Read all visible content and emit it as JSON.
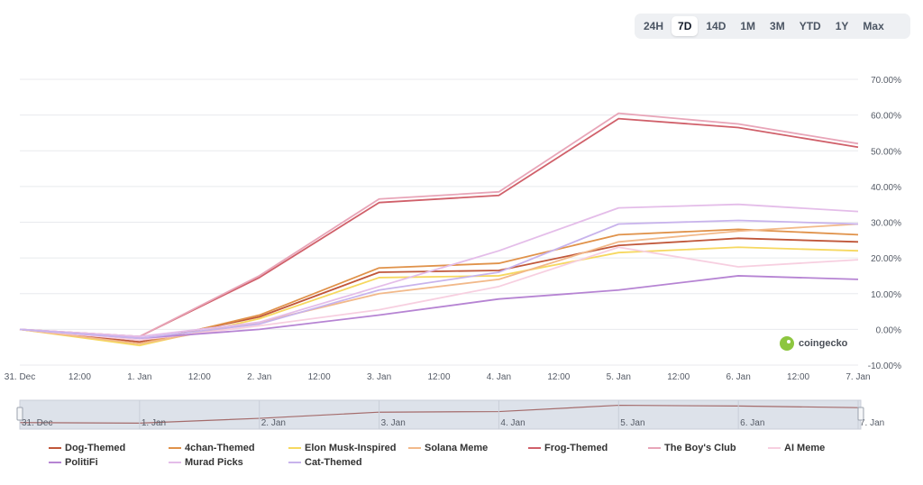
{
  "range_selector": {
    "options": [
      "24H",
      "7D",
      "14D",
      "1M",
      "3M",
      "YTD",
      "1Y",
      "Max"
    ],
    "active": "7D"
  },
  "brand": {
    "name": "coingecko"
  },
  "chart_data": {
    "type": "line",
    "x": [
      "31. Dec",
      "1. Jan",
      "2. Jan",
      "3. Jan",
      "4. Jan",
      "5. Jan",
      "6. Jan",
      "7. Jan"
    ],
    "x_tick_labels": [
      "31. Dec",
      "12:00",
      "1. Jan",
      "12:00",
      "2. Jan",
      "12:00",
      "3. Jan",
      "12:00",
      "4. Jan",
      "12:00",
      "5. Jan",
      "12:00",
      "6. Jan",
      "12:00",
      "7. Jan"
    ],
    "y_tick_labels": [
      "70.00%",
      "60.00%",
      "50.00%",
      "40.00%",
      "30.00%",
      "20.00%",
      "10.00%",
      "0.00%",
      "-10.00%"
    ],
    "ylim": [
      -10,
      70
    ],
    "y_unit": "%",
    "grid": true,
    "legend_position": "bottom",
    "series": [
      {
        "name": "Dog-Themed",
        "color": "#c0573a",
        "values": [
          0,
          -3.5,
          3.5,
          16,
          16.5,
          23.5,
          25.5,
          24.5
        ]
      },
      {
        "name": "4chan-Themed",
        "color": "#e0924a",
        "values": [
          0,
          -4,
          4,
          17.2,
          18.5,
          26.5,
          28,
          26.5
        ]
      },
      {
        "name": "Elon Musk-Inspired",
        "color": "#f6d860",
        "values": [
          0,
          -4.5,
          3,
          14.5,
          15,
          21.5,
          23,
          22
        ]
      },
      {
        "name": "Solana Meme",
        "color": "#f2b98a",
        "values": [
          0,
          -4,
          2,
          10,
          14,
          24.5,
          27.5,
          29.5
        ]
      },
      {
        "name": "Frog-Themed",
        "color": "#d0606a",
        "values": [
          0,
          -2,
          14.5,
          35.5,
          37.5,
          59,
          56.5,
          51
        ]
      },
      {
        "name": "The Boy's Club",
        "color": "#e8a5b8",
        "values": [
          0,
          -2,
          15,
          36.5,
          38.5,
          60.5,
          57.5,
          52
        ]
      },
      {
        "name": "AI Meme",
        "color": "#f7cfe0",
        "values": [
          0,
          -3,
          1,
          5.5,
          12,
          23,
          17.5,
          19.5
        ]
      },
      {
        "name": "PolitiFi",
        "color": "#b684d3",
        "values": [
          0,
          -2.5,
          0,
          4,
          8.5,
          11,
          15,
          14
        ]
      },
      {
        "name": "Murad Picks",
        "color": "#e4bde9",
        "values": [
          0,
          -2,
          2,
          12,
          22,
          34,
          35,
          33
        ]
      },
      {
        "name": "Cat-Themed",
        "color": "#c8b3ec",
        "values": [
          0,
          -2.5,
          1.5,
          11,
          16,
          29.5,
          30.5,
          29.5
        ]
      }
    ],
    "navigator": {
      "labels": [
        "31. Dec",
        "1. Jan",
        "2. Jan",
        "3. Jan",
        "4. Jan",
        "5. Jan",
        "6. Jan",
        "7. Jan"
      ]
    }
  }
}
